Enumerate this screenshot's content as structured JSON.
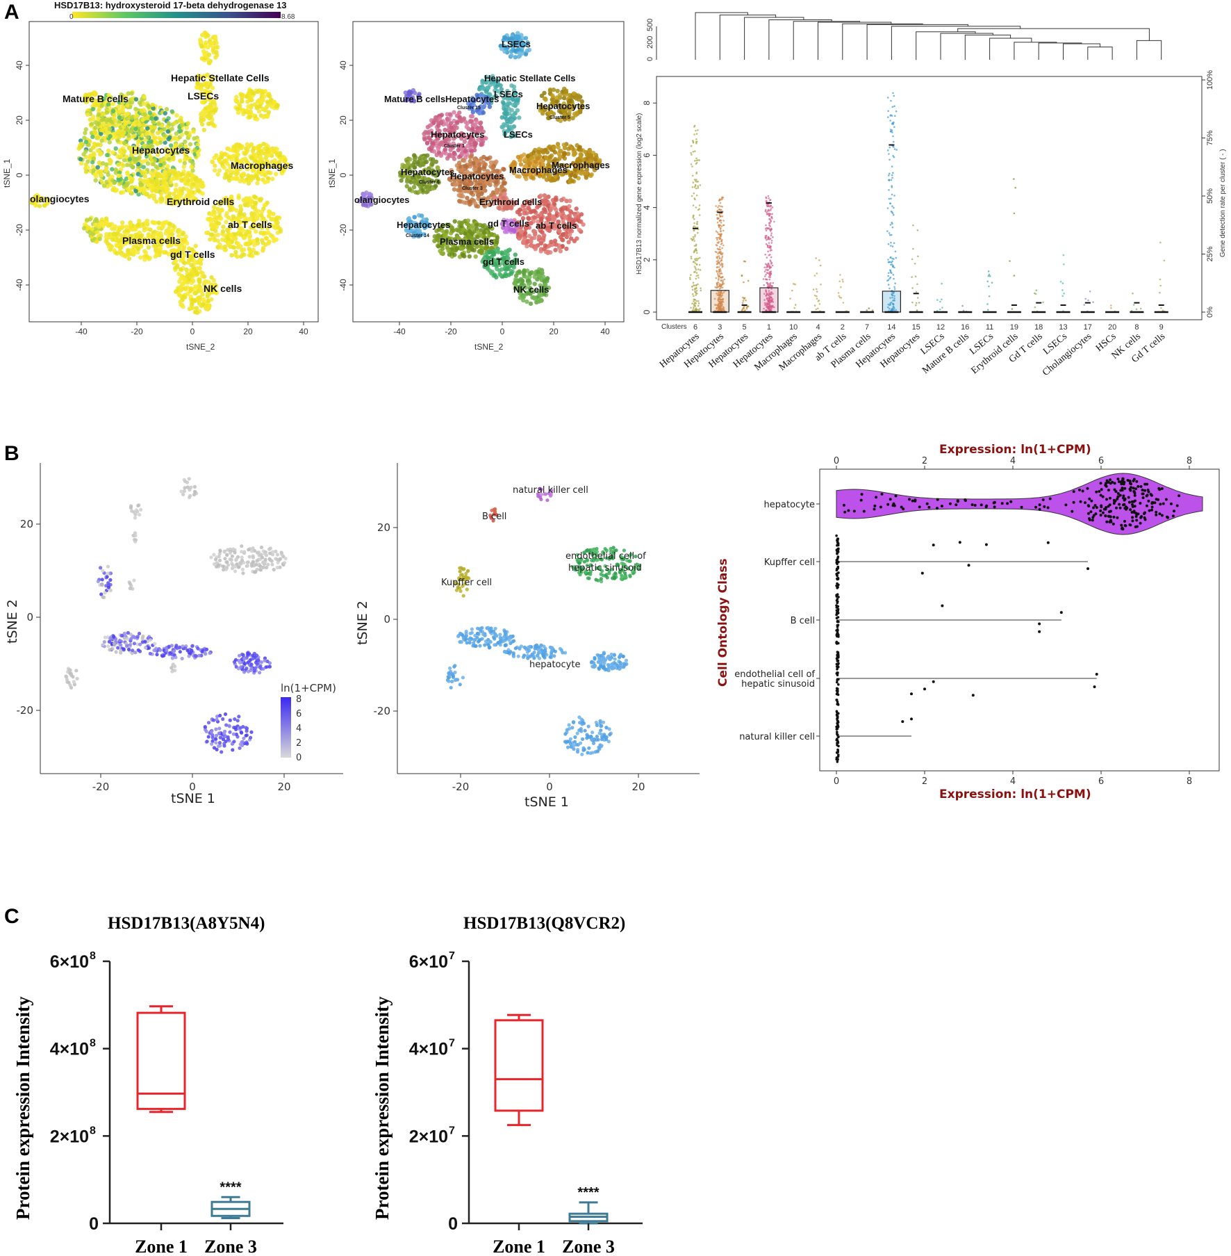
{
  "panel_labels": {
    "a": "A",
    "b": "B",
    "c": "C"
  },
  "panelA": {
    "tsne1": {
      "title": "HSD17B13: hydroxysteroid 17-beta dehydrogenase 13",
      "colorbar_min": "0",
      "colorbar_max": "8.68",
      "xlabel": "tSNE_2",
      "ylabel": "tSNE_1",
      "xticks": [
        "-40",
        "-20",
        "0",
        "20",
        "40"
      ],
      "yticks": [
        "40",
        "20",
        "0",
        "-20",
        "-40"
      ],
      "labels": [
        "Hepatic Stellate Cells",
        "Mature B cells",
        "LSECs",
        "Hepatocytes",
        "Macrophages",
        "olangiocytes",
        "Erythroid cells",
        "ab T cells",
        "Plasma cells",
        "gd T cells",
        "NK cells"
      ]
    },
    "tsne2": {
      "xlabel": "tSNE_2",
      "ylabel": "tSNE_1",
      "xticks": [
        "-40",
        "-20",
        "0",
        "20",
        "40"
      ],
      "yticks": [
        "40",
        "20",
        "0",
        "-20",
        "-40"
      ],
      "labels": [
        "LSECs",
        "Hepatic Stellate Cells",
        "Mature B cells",
        "Hepatocytes",
        "LSECs",
        "Hepatocytes",
        "Hepatocytes",
        "LSECs",
        "Hepatocytes",
        "Hepatocytes",
        "Macrophages",
        "Macrophages",
        "olangiocytes",
        "Erythroid cells",
        "Hepatocytes",
        "gd T cells",
        "ab T cells",
        "Plasma cells",
        "gd T cells",
        "NK cells"
      ],
      "sublabels": [
        "Cluster 15",
        "Cluster 5",
        "Cluster 1",
        "Cluster 6",
        "Cluster 3",
        "Cluster 14"
      ]
    },
    "boxplot": {
      "ylabel": "HSD17B13 normalized gene expression (log2 scale)",
      "ylabel_right": "Gene detection rate per cluster ( - )",
      "yticks": [
        "0",
        "2",
        "4",
        "6",
        "8"
      ],
      "yticks_right": [
        "0%",
        "25%",
        "50%",
        "75%",
        "100%"
      ],
      "dendro_ticks": [
        "0",
        "200",
        "500"
      ],
      "clusters_label": "Clusters",
      "clusters": [
        "6",
        "3",
        "5",
        "1",
        "10",
        "4",
        "2",
        "7",
        "14",
        "15",
        "12",
        "16",
        "11",
        "19",
        "18",
        "13",
        "17",
        "20",
        "8",
        "9"
      ],
      "celltypes": [
        "Hepatocytes",
        "Hepatocytes",
        "Hepatocytes",
        "Hepatocytes",
        "Macrophages",
        "Macrophages",
        "ab T cells",
        "Plasma cells",
        "Hepatocytes",
        "Hepatocytes",
        "LSECs",
        "Mature B cells",
        "LSECs",
        "Erythroid cells",
        "Gd T cells",
        "LSECs",
        "Cholangiocytes",
        "HSCs",
        "NK cells",
        "Gd T cells"
      ]
    }
  },
  "panelB": {
    "tsne1": {
      "xlabel": "tSNE 1",
      "ylabel": "tSNE 2",
      "xticks": [
        "-20",
        "0",
        "20"
      ],
      "yticks": [
        "20",
        "0",
        "-20"
      ],
      "legend_title": "ln(1+CPM)",
      "legend_ticks": [
        "8",
        "6",
        "4",
        "2",
        "0"
      ]
    },
    "tsne2": {
      "xlabel": "tSNE 1",
      "ylabel": "tSNE 2",
      "xticks": [
        "-20",
        "0",
        "20"
      ],
      "yticks": [
        "20",
        "0",
        "-20"
      ],
      "labels": [
        "natural killer cell",
        "B cell",
        "endothelial cell of",
        "hepatic sinusoid",
        "Kupffer cell",
        "hepatocyte"
      ]
    },
    "violin": {
      "xlabel": "Expression: ln(1+CPM)",
      "ylabel": "Cell Ontology Class",
      "xticks": [
        "0",
        "2",
        "4",
        "6",
        "8"
      ],
      "categories": [
        "hepatocyte",
        "Kupffer cell",
        "B cell",
        "endothelial cell of",
        "hepatic sinusoid",
        "natural killer cell"
      ]
    }
  },
  "chart_data": [
    {
      "type": "box",
      "title": "HSD17B13(A8Y5N4)",
      "ylabel": "Protein expression Intensity",
      "categories": [
        "Zone 1",
        "Zone 3"
      ],
      "ytick_labels": [
        "0",
        "2×10",
        "4×10",
        "6×10"
      ],
      "ytick_exp": "8",
      "ylim": [
        0,
        600000000
      ],
      "boxes": [
        {
          "name": "Zone 1",
          "min": 255000000,
          "q1": 262000000,
          "median": 297000000,
          "q3": 482000000,
          "max": 497000000,
          "color": "#e8252b"
        },
        {
          "name": "Zone 3",
          "min": 12000000,
          "q1": 17000000,
          "median": 33000000,
          "q3": 49000000,
          "max": 60000000,
          "color": "#3d7a94"
        }
      ],
      "annotation": "****"
    },
    {
      "type": "box",
      "title": "HSD17B13(Q8VCR2)",
      "ylabel": "Protein expression Intensity",
      "categories": [
        "Zone 1",
        "Zone 3"
      ],
      "ytick_labels": [
        "0",
        "2×10",
        "4×10",
        "6×10"
      ],
      "ytick_exp": "7",
      "ylim": [
        0,
        60000000
      ],
      "boxes": [
        {
          "name": "Zone 1",
          "min": 22500000,
          "q1": 25800000,
          "median": 33000000,
          "q3": 46500000,
          "max": 47700000,
          "color": "#e8252b"
        },
        {
          "name": "Zone 3",
          "min": 0,
          "q1": 500000,
          "median": 1500000,
          "q3": 2200000,
          "max": 4800000,
          "color": "#3d7a94"
        }
      ],
      "annotation": "****"
    }
  ]
}
